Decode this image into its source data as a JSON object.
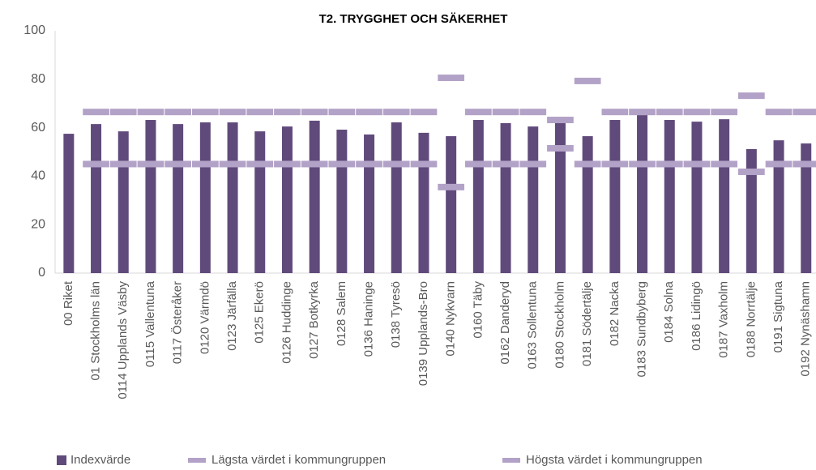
{
  "chart_data": {
    "type": "bar",
    "title": "T2. TRYGGHET OCH SÄKERHET",
    "categories": [
      "00 Riket",
      "01 Stockholms län",
      "0114 Upplands Väsby",
      "0115 Vallentuna",
      "0117 Österåker",
      "0120 Värmdö",
      "0123 Järfälla",
      "0125 Ekerö",
      "0126 Huddinge",
      "0127 Botkyrka",
      "0128 Salem",
      "0136 Haninge",
      "0138 Tyresö",
      "0139 Upplands-Bro",
      "0140 Nykvarn",
      "0160 Täby",
      "0162 Danderyd",
      "0163 Sollentuna",
      "0180 Stockholm",
      "0181 Södertälje",
      "0182 Nacka",
      "0183 Sundbyberg",
      "0184 Solna",
      "0186 Lidingö",
      "0187 Vaxholm",
      "0188 Norrtälje",
      "0191 Sigtuna",
      "0192 Nynäshamn"
    ],
    "series": [
      {
        "name": "Indexvärde",
        "color": "#604a7b",
        "marker": "bar",
        "values": [
          57.5,
          61.5,
          58.5,
          63.2,
          61.5,
          62.2,
          62.2,
          58.5,
          60.5,
          62.9,
          59.2,
          57.2,
          62.2,
          57.9,
          56.5,
          63.2,
          61.9,
          60.5,
          61.9,
          56.5,
          63.2,
          65.2,
          63.2,
          62.5,
          63.5,
          51.2,
          54.8,
          53.5
        ]
      },
      {
        "name": "Lägsta värdet i kommungruppen",
        "color": "#b3a2c7",
        "marker": "dash",
        "values": [
          null,
          45,
          45,
          45,
          45,
          45,
          45,
          45,
          45,
          45,
          45,
          45,
          45,
          45,
          35.5,
          45,
          45,
          45,
          51.5,
          45,
          45,
          45,
          45,
          45,
          45,
          41.8,
          45,
          45
        ]
      },
      {
        "name": "Högsta värdet i kommungruppen",
        "color": "#b3a2c7",
        "marker": "dash",
        "values": [
          null,
          66.5,
          66.5,
          66.5,
          66.5,
          66.5,
          66.5,
          66.5,
          66.5,
          66.5,
          66.5,
          66.5,
          66.5,
          66.5,
          80.6,
          66.5,
          66.5,
          66.5,
          63.2,
          79.3,
          66.5,
          66.5,
          66.5,
          66.5,
          66.5,
          73.2,
          66.5,
          66.5
        ]
      }
    ],
    "ylim": [
      0,
      100
    ],
    "yticks": [
      0,
      20,
      40,
      60,
      80,
      100
    ],
    "grid": false,
    "legend": "bottom"
  }
}
